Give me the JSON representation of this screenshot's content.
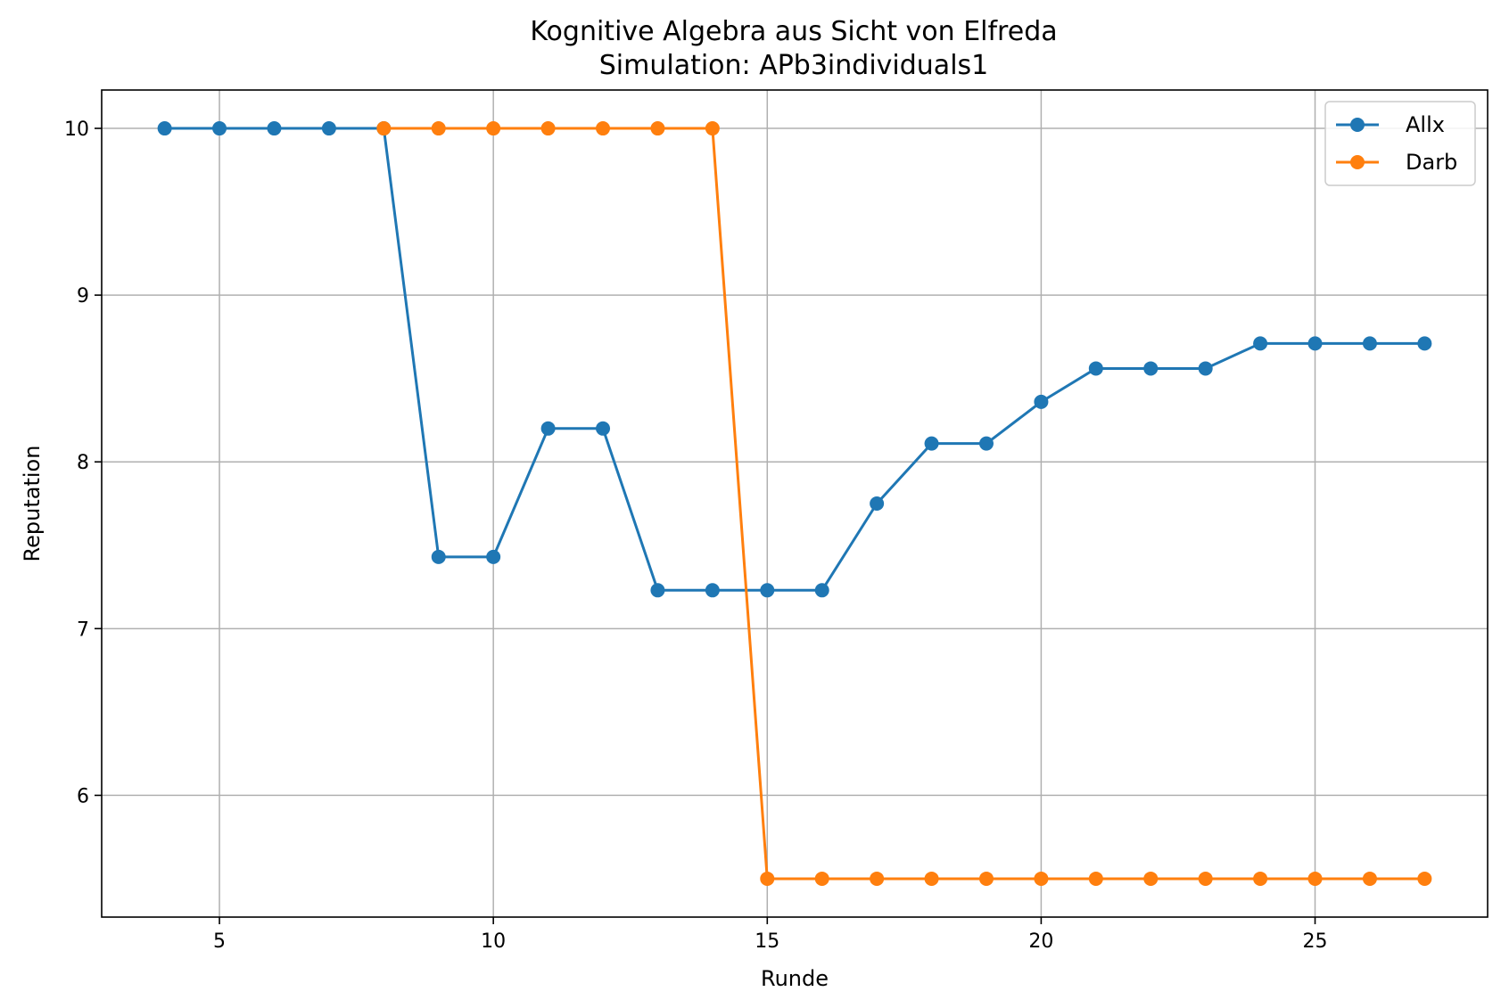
{
  "chart_data": {
    "type": "line",
    "title": "Kognitive Algebra aus Sicht von Elfreda",
    "subtitle": "Simulation: APb3individuals1",
    "xlabel": "Runde",
    "ylabel": "Reputation",
    "xlim": [
      2.85,
      28.15
    ],
    "ylim": [
      5.27,
      10.23
    ],
    "xticks": [
      5,
      10,
      15,
      20,
      25
    ],
    "yticks": [
      6,
      7,
      8,
      9,
      10
    ],
    "grid": true,
    "legend_position": "top-right",
    "series": [
      {
        "name": "Allx",
        "color": "#1f77b4",
        "x": [
          4,
          5,
          6,
          7,
          8,
          9,
          10,
          11,
          12,
          13,
          14,
          15,
          16,
          17,
          18,
          19,
          20,
          21,
          22,
          23,
          24,
          25,
          26,
          27
        ],
        "y": [
          10,
          10,
          10,
          10,
          10,
          7.43,
          7.43,
          8.2,
          8.2,
          7.23,
          7.23,
          7.23,
          7.23,
          7.75,
          8.11,
          8.11,
          8.36,
          8.56,
          8.56,
          8.56,
          8.71,
          8.71,
          8.71,
          8.71
        ]
      },
      {
        "name": "Darb",
        "color": "#ff7f0e",
        "x": [
          8,
          9,
          10,
          11,
          12,
          13,
          14,
          15,
          16,
          17,
          18,
          19,
          20,
          21,
          22,
          23,
          24,
          25,
          26,
          27
        ],
        "y": [
          10,
          10,
          10,
          10,
          10,
          10,
          10,
          5.5,
          5.5,
          5.5,
          5.5,
          5.5,
          5.5,
          5.5,
          5.5,
          5.5,
          5.5,
          5.5,
          5.5,
          5.5
        ]
      }
    ]
  }
}
